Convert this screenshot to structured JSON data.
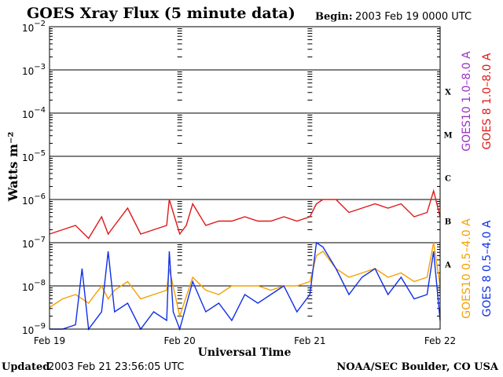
{
  "header": {
    "title": "GOES Xray Flux (5 minute data)",
    "begin_label": "Begin:",
    "begin_value": "2003 Feb 19 0000 UTC"
  },
  "footer": {
    "updated_label": "Updated",
    "updated_value": "2003 Feb 21 23:56:05 UTC",
    "credit": "NOAA/SEC Boulder, CO USA"
  },
  "colors": {
    "goes10_long": "#9b30c8",
    "goes8_long": "#e01818",
    "goes10_short": "#f5a000",
    "goes8_short": "#1030e8",
    "grid": "#000000"
  },
  "chart_data": {
    "type": "line",
    "xlabel": "Universal Time",
    "ylabel": "Watts m⁻²",
    "y_scale": "log",
    "ylim": [
      1e-09,
      0.01
    ],
    "xlim_days": [
      0,
      3
    ],
    "x_ticks": [
      "Feb 19",
      "Feb 20",
      "Feb 21",
      "Feb 22"
    ],
    "y_ticks": [
      {
        "base": "10",
        "exp": "−9"
      },
      {
        "base": "10",
        "exp": "−8"
      },
      {
        "base": "10",
        "exp": "−7"
      },
      {
        "base": "10",
        "exp": "−6"
      },
      {
        "base": "10",
        "exp": "−5"
      },
      {
        "base": "10",
        "exp": "−4"
      },
      {
        "base": "10",
        "exp": "−3"
      },
      {
        "base": "10",
        "exp": "−2"
      }
    ],
    "flare_classes": [
      {
        "label": "A",
        "log_flux": -7.5
      },
      {
        "label": "B",
        "log_flux": -6.5
      },
      {
        "label": "C",
        "log_flux": -5.5
      },
      {
        "label": "M",
        "log_flux": -4.5
      },
      {
        "label": "X",
        "log_flux": -3.5
      }
    ],
    "series": [
      {
        "name": "GOES10 1.0–8.0 A",
        "color": "#9b30c8",
        "x_days": [],
        "log_flux": []
      },
      {
        "name": "GOES 8 1.0–8.0 A",
        "color": "#e01818",
        "x_days": [
          0.0,
          0.1,
          0.2,
          0.3,
          0.4,
          0.45,
          0.5,
          0.6,
          0.7,
          0.8,
          0.9,
          0.92,
          0.95,
          1.0,
          1.05,
          1.1,
          1.2,
          1.3,
          1.4,
          1.5,
          1.6,
          1.7,
          1.8,
          1.9,
          2.0,
          2.05,
          2.1,
          2.2,
          2.3,
          2.4,
          2.5,
          2.6,
          2.7,
          2.8,
          2.9,
          2.95,
          3.0
        ],
        "log_flux": [
          -6.8,
          -6.7,
          -6.6,
          -6.9,
          -6.4,
          -6.8,
          -6.6,
          -6.2,
          -6.8,
          -6.7,
          -6.6,
          -6.0,
          -6.3,
          -6.8,
          -6.6,
          -6.1,
          -6.6,
          -6.5,
          -6.5,
          -6.4,
          -6.5,
          -6.5,
          -6.4,
          -6.5,
          -6.4,
          -6.1,
          -6.0,
          -6.0,
          -6.3,
          -6.2,
          -6.1,
          -6.2,
          -6.1,
          -6.4,
          -6.3,
          -5.8,
          -6.4
        ]
      },
      {
        "name": "GOES10 0.5–4.0 A",
        "color": "#f5a000",
        "x_days": [
          0.0,
          0.1,
          0.2,
          0.3,
          0.4,
          0.45,
          0.5,
          0.6,
          0.7,
          0.8,
          0.9,
          0.92,
          1.0,
          1.1,
          1.2,
          1.3,
          1.4,
          1.5,
          1.6,
          1.7,
          1.8,
          1.9,
          2.0,
          2.05,
          2.1,
          2.2,
          2.3,
          2.4,
          2.5,
          2.6,
          2.7,
          2.8,
          2.9,
          2.95,
          3.0
        ],
        "log_flux": [
          -8.5,
          -8.3,
          -8.2,
          -8.4,
          -8.0,
          -8.3,
          -8.1,
          -7.9,
          -8.3,
          -8.2,
          -8.1,
          -7.6,
          -8.7,
          -7.8,
          -8.1,
          -8.2,
          -8.0,
          -8.0,
          -8.0,
          -8.1,
          -8.0,
          -8.0,
          -7.9,
          -7.3,
          -7.2,
          -7.6,
          -7.8,
          -7.7,
          -7.6,
          -7.8,
          -7.7,
          -7.9,
          -7.8,
          -7.0,
          -8.0
        ]
      },
      {
        "name": "GOES 8 0.5–4.0 A",
        "color": "#1030e8",
        "x_days": [
          0.0,
          0.1,
          0.2,
          0.25,
          0.3,
          0.4,
          0.45,
          0.5,
          0.6,
          0.7,
          0.8,
          0.9,
          0.92,
          0.95,
          1.0,
          1.1,
          1.2,
          1.3,
          1.4,
          1.5,
          1.6,
          1.7,
          1.8,
          1.9,
          2.0,
          2.05,
          2.1,
          2.2,
          2.3,
          2.4,
          2.5,
          2.6,
          2.7,
          2.8,
          2.9,
          2.95,
          3.0
        ],
        "log_flux": [
          -9.0,
          -9.0,
          -8.9,
          -7.6,
          -9.0,
          -8.6,
          -7.2,
          -8.6,
          -8.4,
          -9.0,
          -8.6,
          -8.8,
          -7.2,
          -8.6,
          -9.0,
          -7.9,
          -8.6,
          -8.4,
          -8.8,
          -8.2,
          -8.4,
          -8.2,
          -8.0,
          -8.6,
          -8.2,
          -7.0,
          -7.1,
          -7.6,
          -8.2,
          -7.8,
          -7.6,
          -8.2,
          -7.8,
          -8.3,
          -8.2,
          -7.2,
          -8.8
        ]
      }
    ]
  }
}
